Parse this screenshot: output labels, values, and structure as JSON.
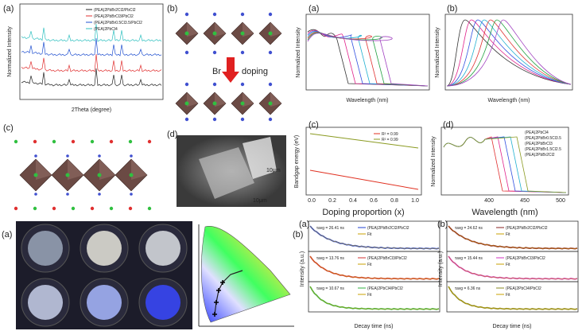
{
  "panels": {
    "xrd": {
      "label": "(a)",
      "y_label": "Normalized Intensity",
      "x_label": "2Theta (degree)",
      "legend": [
        "(PEA)2PbBr2Cl2/PbCl2",
        "(PEA)2PbBrCl3/PbCl2",
        "(PEA)2PbBr0.5Cl3.5/PbCl2",
        "(PEA)2PbCl4"
      ]
    },
    "structure_top": {
      "label": "(b)",
      "arrow_text_left": "Br",
      "arrow_text_right": "doping"
    },
    "absorption": {
      "label": "(a)",
      "y_label": "Normalized Intensity",
      "x_label": "Wavelength (nm)"
    },
    "pl_top": {
      "label": "(b)",
      "y_label": "Normalized Intensity",
      "x_label": "Wavelength (nm)"
    },
    "structure_mid": {
      "label": "(c)"
    },
    "sem": {
      "label": "(d)",
      "scale_bars": [
        "10μm",
        "10μm"
      ]
    },
    "bandgap": {
      "label": "(c)",
      "y_label": "Bandgap energy (eV)",
      "x_label": "Doping proportion (x)",
      "x_ticks": [
        "0.0",
        "0.2",
        "0.4",
        "0.6",
        "0.8",
        "1.0"
      ],
      "legend": [
        "R² = 0.99",
        "R² = 0.99"
      ]
    },
    "pl_mid": {
      "label": "(d)",
      "y_label": "Normalized Intensity",
      "x_label": "Wavelength (nm)",
      "x_ticks": [
        "400",
        "450",
        "500"
      ],
      "legend": [
        "(PEA)2PbCl4",
        "(PEA)2PbBr0.5Cl3.5",
        "(PEA)2PbBrCl3",
        "(PEA)2PbBr1.5Cl2.5",
        "(PEA)2PbBr2Cl2"
      ]
    },
    "photos": {
      "label": "(a)"
    },
    "cie": {
      "label": "(b)"
    },
    "decay_a": {
      "label": "(a)",
      "y_label": "Intensity (a.u.)",
      "x_label": "Decay time (ns)",
      "traces": [
        {
          "tau": "τavg = 26.41 ns",
          "name": "(PEA)2PbBr2Cl2/PbCl2",
          "fit": "Fit"
        },
        {
          "tau": "τavg = 13.76 ns",
          "name": "(PEA)2PbBrCl3/PbCl2",
          "fit": "Fit"
        },
        {
          "tau": "τavg = 10.67 ns",
          "name": "(PEA)2PbCl4/PbCl2",
          "fit": "Fit"
        }
      ]
    },
    "decay_b": {
      "label": "(b)",
      "y_label": "Intensity (a.u.)",
      "x_label": "Decay time (ns)",
      "traces": [
        {
          "tau": "τavg = 24.62 ns",
          "name": "(PEA)2PbBr2Cl2/PbCl2",
          "fit": "Fit"
        },
        {
          "tau": "τavg = 15.44 ns",
          "name": "(PEA)2PbBrCl3/PbCl2",
          "fit": "Fit"
        },
        {
          "tau": "τavg = 6.36 ns",
          "name": "(PEA)2PbCl4/PbCl2",
          "fit": "Fit"
        }
      ]
    }
  }
}
